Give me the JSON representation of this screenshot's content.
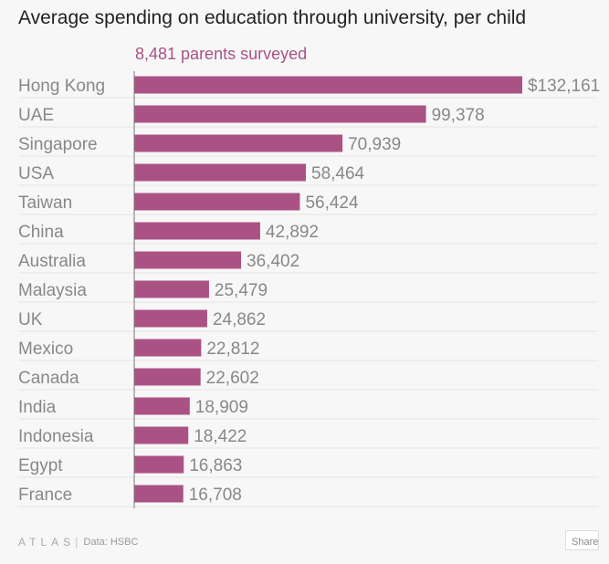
{
  "header": {
    "title": "Average spending on education through university, per child",
    "subtitle": "8,481 parents surveyed"
  },
  "footer": {
    "brand": "ATLAS",
    "separator": "|",
    "source": "Data: HSBC",
    "share_label": "Share"
  },
  "colors": {
    "bar": "#ab5285",
    "subtitle": "#ab5285",
    "label_text": "#888888",
    "title_text": "#222222"
  },
  "chart_data": {
    "type": "bar",
    "orientation": "horizontal",
    "title": "Average spending on education through university, per child",
    "subtitle": "8,481 parents surveyed",
    "categories": [
      "Hong Kong",
      "UAE",
      "Singapore",
      "USA",
      "Taiwan",
      "China",
      "Australia",
      "Malaysia",
      "UK",
      "Mexico",
      "Canada",
      "India",
      "Indonesia",
      "Egypt",
      "France"
    ],
    "values": [
      132161,
      99378,
      70939,
      58464,
      56424,
      42892,
      36402,
      25479,
      24862,
      22812,
      22602,
      18909,
      18422,
      16863,
      16708
    ],
    "value_labels": [
      "$132,161",
      "99,378",
      "70,939",
      "58,464",
      "56,424",
      "42,892",
      "36,402",
      "25,479",
      "24,862",
      "22,812",
      "22,602",
      "18,909",
      "18,422",
      "16,863",
      "16,708"
    ],
    "xlim": [
      0,
      132161
    ],
    "grid": true,
    "source": "Data: HSBC"
  }
}
